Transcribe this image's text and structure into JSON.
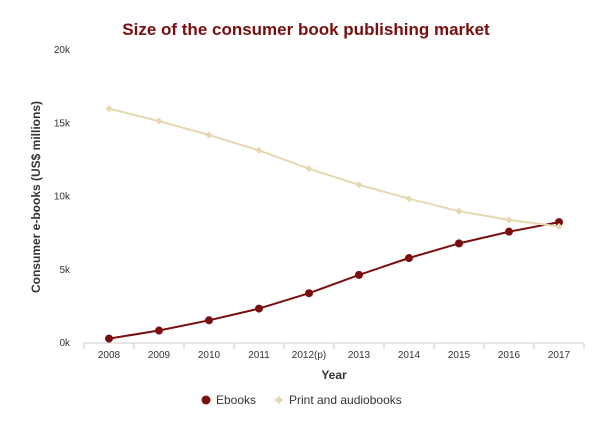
{
  "chart_data": {
    "type": "line",
    "title": "Size of the consumer book publishing market",
    "xlabel": "Year",
    "ylabel": "Consumer e-books (US$ millions)",
    "categories": [
      "2008",
      "2009",
      "2010",
      "2011",
      "2012(p)",
      "2013",
      "2014",
      "2015",
      "2016",
      "2017"
    ],
    "ylim": [
      0,
      20000
    ],
    "yticks": [
      0,
      5000,
      10000,
      15000,
      20000
    ],
    "ytick_labels": [
      "0k",
      "5k",
      "10k",
      "15k",
      "20k"
    ],
    "grid": false,
    "legend_position": "bottom",
    "series": [
      {
        "name": "Ebooks",
        "color": "#7a0e0e",
        "marker": "circle",
        "values": [
          300,
          850,
          1550,
          2350,
          3400,
          4650,
          5800,
          6800,
          7600,
          8250
        ]
      },
      {
        "name": "Print and audiobooks",
        "color": "#e6d8b0",
        "marker": "diamond",
        "values": [
          16000,
          15150,
          14200,
          13150,
          11900,
          10800,
          9850,
          9000,
          8400,
          7950
        ]
      }
    ]
  }
}
